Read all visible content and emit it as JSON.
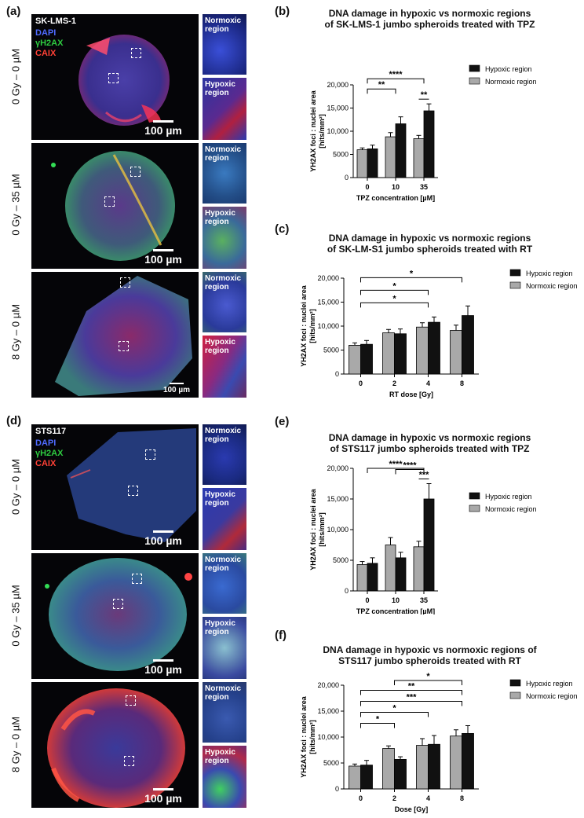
{
  "panel_a": {
    "letter": "(a)",
    "cell_line": "SK-LMS-1",
    "stains": [
      "DAPI",
      "γH2AX",
      "CAIX"
    ],
    "rows": [
      {
        "label": "0 Gy – 0 µM",
        "scale": "100 µm",
        "inset_top": "Normoxic\nregion",
        "inset_bottom": "Hypoxic\nregion"
      },
      {
        "label": "0 Gy – 35 µM",
        "scale": "100 µm",
        "inset_top": "Normoxic\nregion",
        "inset_bottom": "Hypoxic\nregion"
      },
      {
        "label": "8 Gy – 0 µM",
        "scale": "100 µm",
        "inset_top": "Normoxic\nregion",
        "inset_bottom": "Hypoxic\nregion"
      }
    ]
  },
  "panel_d": {
    "letter": "(d)",
    "cell_line": "STS117",
    "stains": [
      "DAPI",
      "γH2AX",
      "CAIX"
    ],
    "rows": [
      {
        "label": "0 Gy – 0 µM",
        "scale": "100 µm",
        "inset_top": "Normoxic\nregion",
        "inset_bottom": "Hypoxic\nregion"
      },
      {
        "label": "0 Gy – 35 µM",
        "scale": "100 µm",
        "inset_top": "Normoxic\nregion",
        "inset_bottom": "Hypoxic\nregion"
      },
      {
        "label": "8 Gy – 0 µM",
        "scale": "100 µm",
        "inset_top": "Normoxic\nregion",
        "inset_bottom": "Hypoxic\nregion"
      }
    ]
  },
  "colors": {
    "dapi": "#3b5bff",
    "gh2ax": "#22c55e",
    "caix": "#ef3b2c",
    "hypoxic_bar": "#111111",
    "normoxic_bar": "#a9a9a9"
  },
  "chart_data": [
    {
      "letter": "(b)",
      "type": "bar",
      "title": "DNA damage in hypoxic vs normoxic regions\nof SK-LMS-1 jumbo spheroids treated with TPZ",
      "xlabel": "TPZ concentration [µM]",
      "ylabel": "YH2AX foci : nuclei area\n[hits/mm²]",
      "categories": [
        "0",
        "10",
        "35"
      ],
      "ylim": [
        0,
        20000
      ],
      "yticks": [
        "0",
        "5000",
        "10,000",
        "15,000",
        "20,000"
      ],
      "legend": [
        "Hypoxic region",
        "Normoxic region"
      ],
      "series": [
        {
          "name": "Normoxic region",
          "values": [
            6000,
            8800,
            8400
          ],
          "errors": [
            400,
            900,
            700
          ]
        },
        {
          "name": "Hypoxic region",
          "values": [
            6200,
            11600,
            14400
          ],
          "errors": [
            800,
            1500,
            1500
          ]
        }
      ],
      "significance": [
        {
          "from": "0",
          "to": "35",
          "label": "****"
        },
        {
          "from": "0",
          "to": "10",
          "label": "**"
        },
        {
          "from": "35",
          "to": "35",
          "label": "**"
        }
      ]
    },
    {
      "letter": "(c)",
      "type": "bar",
      "title": "DNA damage in hypoxic vs normoxic regions\nof SK-LM-S1 jumbo spheroids treated with RT",
      "xlabel": "RT dose [Gy]",
      "ylabel": "YH2AX foci : nuclei area\n[hits/mm²]",
      "categories": [
        "0",
        "2",
        "4",
        "8"
      ],
      "ylim": [
        0,
        20000
      ],
      "yticks": [
        "0",
        "5000",
        "10,000",
        "15,000",
        "20,000"
      ],
      "legend": [
        "Hypoxic region",
        "Normoxic region"
      ],
      "series": [
        {
          "name": "Normoxic region",
          "values": [
            6000,
            8600,
            9800,
            9100
          ],
          "errors": [
            500,
            700,
            900,
            1100
          ]
        },
        {
          "name": "Hypoxic region",
          "values": [
            6200,
            8400,
            10800,
            12200
          ],
          "errors": [
            800,
            1000,
            1100,
            2000
          ]
        }
      ],
      "significance": [
        {
          "from": "0",
          "to": "8",
          "label": "*"
        },
        {
          "from": "0",
          "to": "4",
          "label": "*"
        },
        {
          "from": "0",
          "to": "4",
          "label": "*"
        }
      ]
    },
    {
      "letter": "(e)",
      "type": "bar",
      "title": "DNA damage in hypoxic vs normoxic regions\nof STS117 jumbo spheroids treated with TPZ",
      "xlabel": "TPZ concentration [µM]",
      "ylabel": "YH2AX foci : nuclei area\n[hits/mm²]",
      "categories": [
        "0",
        "10",
        "35"
      ],
      "ylim": [
        0,
        20000
      ],
      "yticks": [
        "0",
        "5000",
        "10,000",
        "15,000",
        "20,000"
      ],
      "legend": [
        "Hypoxic region",
        "Normoxic region"
      ],
      "series": [
        {
          "name": "Normoxic region",
          "values": [
            4300,
            7500,
            7200
          ],
          "errors": [
            500,
            1200,
            900
          ]
        },
        {
          "name": "Hypoxic region",
          "values": [
            4500,
            5400,
            15000
          ],
          "errors": [
            900,
            900,
            2500
          ]
        }
      ],
      "significance": [
        {
          "from": "0",
          "to": "35",
          "label": "****"
        },
        {
          "from": "10",
          "to": "35",
          "label": "****"
        },
        {
          "from": "35",
          "to": "35",
          "label": "***"
        }
      ]
    },
    {
      "letter": "(f)",
      "type": "bar",
      "title": "DNA damage in hypoxic vs normoxic regions of\nSTS117 jumbo spheroids treated with RT",
      "xlabel": "Dose [Gy]",
      "ylabel": "YH2AX foci : nuclei area\n[hits/mm²]",
      "categories": [
        "0",
        "2",
        "4",
        "8"
      ],
      "ylim": [
        0,
        20000
      ],
      "yticks": [
        "0",
        "5000",
        "10,000",
        "15,000",
        "20,000"
      ],
      "legend": [
        "Hypoxic region",
        "Normoxic region"
      ],
      "series": [
        {
          "name": "Normoxic region",
          "values": [
            4400,
            7800,
            8400,
            10200
          ],
          "errors": [
            400,
            500,
            1300,
            1200
          ]
        },
        {
          "name": "Hypoxic region",
          "values": [
            4600,
            5700,
            8600,
            10700
          ],
          "errors": [
            900,
            500,
            1700,
            1500
          ]
        }
      ],
      "significance": [
        {
          "from": "2",
          "to": "8",
          "label": "*"
        },
        {
          "from": "0",
          "to": "8",
          "label": "**"
        },
        {
          "from": "0",
          "to": "8",
          "label": "***"
        },
        {
          "from": "0",
          "to": "4",
          "label": "*"
        },
        {
          "from": "0",
          "to": "2",
          "label": "*"
        }
      ]
    }
  ]
}
